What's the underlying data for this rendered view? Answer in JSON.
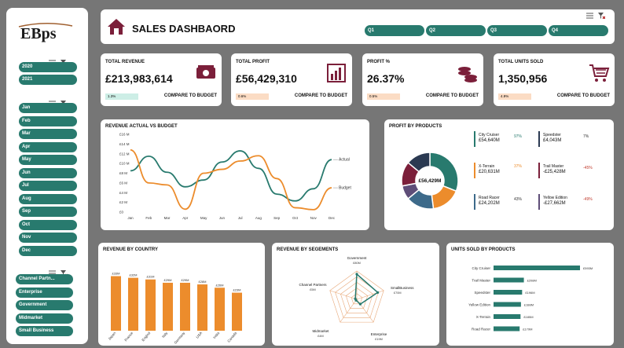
{
  "logo": "EBps",
  "sidebar": {
    "years": [
      "2020",
      "2021"
    ],
    "months": [
      "Jan",
      "Feb",
      "Mar",
      "Apr",
      "May",
      "Jun",
      "Jul",
      "Aug",
      "Sep",
      "Oct",
      "Nov",
      "Dec"
    ],
    "segments": [
      "Channel Partn...",
      "Enterprise",
      "Government",
      "Midmarket",
      "Small Business"
    ]
  },
  "header": {
    "title": "SALES DASHBAORD",
    "quarters": [
      "Q1",
      "Q2",
      "Q3",
      "Q4"
    ]
  },
  "kpis": [
    {
      "title": "TOTAL REVENUE",
      "value": "£213,983,614",
      "badge": "1.3%",
      "compare": "COMPARE TO BUDGET",
      "icon": "money-icon",
      "badge_color": "#cdeee6"
    },
    {
      "title": "TOTAL PROFIT",
      "value": "£56,429,310",
      "badge": "0.6%",
      "compare": "COMPARE TO BUDGET",
      "icon": "bar-chart-icon",
      "badge_color": "#fbdcc4"
    },
    {
      "title": "PROFIT %",
      "value": "26.37%",
      "badge": "0.5%",
      "compare": "COMPARE TO BUDGET",
      "icon": "coins-icon",
      "badge_color": "#fbdcc4"
    },
    {
      "title": "TOTAL UNITS SOLD",
      "value": "1,350,956",
      "badge": "4.9%",
      "compare": "COMPARE TO BUDGET",
      "icon": "cart-icon",
      "badge_color": "#fbdcc4"
    }
  ],
  "colors": {
    "teal": "#287a6e",
    "orange": "#ec8c2c",
    "maroon": "#7b1f3a",
    "navy": "#2b3a52",
    "blue": "#3d6a8a"
  },
  "revenue_chart": {
    "title": "REVENUE ACTUAL VS BUDGET",
    "chart_data": {
      "type": "line",
      "categories": [
        "Jan",
        "Feb",
        "Mar",
        "Apr",
        "May",
        "Jun",
        "Jul",
        "Aug",
        "Sep",
        "Oct",
        "Nov",
        "Dec"
      ],
      "yticks": [
        "£0",
        "£2 M",
        "£4 M",
        "£6 M",
        "£8 M",
        "£10 M",
        "£12 M",
        "£14 M",
        "£16 M"
      ],
      "ylim": [
        0,
        16
      ],
      "series": [
        {
          "name": "Actual",
          "values": [
            8.5,
            11.5,
            8.2,
            5.2,
            6.6,
            10.3,
            12.6,
            9.0,
            3.7,
            2.3,
            4.8,
            10.8
          ]
        },
        {
          "name": "Budget",
          "values": [
            12.8,
            6.0,
            5.6,
            0.6,
            8.0,
            8.8,
            10.5,
            11.6,
            6.9,
            0.9,
            0.5,
            5.0
          ]
        }
      ]
    }
  },
  "profit_chart": {
    "title": "PROFIT BY PRODUCTS",
    "center": "£56,429M",
    "chart_data": {
      "type": "pie",
      "items": [
        {
          "name": "City Cruiser",
          "value": "£54,640M",
          "pct": "97%",
          "color": "#287a6e",
          "share": 0.31
        },
        {
          "name": "X-Terrain",
          "value": "£20,631M",
          "pct": "37%",
          "color": "#ec8c2c",
          "share": 0.17
        },
        {
          "name": "Road Racer",
          "value": "£24,202M",
          "pct": "43%",
          "color": "#3d6a8a",
          "share": 0.16
        },
        {
          "name": "Yellow Edition",
          "value": "-£27,662M",
          "pct": "-49%",
          "color": "#5e4d78",
          "share": 0.08
        },
        {
          "name": "Trail Master",
          "value": "-£25,428M",
          "pct": "-45%",
          "color": "#7b1f3a",
          "share": 0.14
        },
        {
          "name": "Speedster",
          "value": "£4,043M",
          "pct": "7%",
          "color": "#2b3a52",
          "share": 0.14
        }
      ]
    }
  },
  "country_chart": {
    "title": "REVENUE BY COUNTRY",
    "chart_data": {
      "type": "bar",
      "categories": [
        "Japan",
        "France",
        "Englnd",
        "Italy",
        "Germany",
        "USA",
        "India",
        "Canada"
      ],
      "values": [
        33,
        32,
        31,
        29,
        29,
        28,
        26,
        23
      ],
      "labels": [
        "£33M",
        "£32M",
        "£31M",
        "£29M",
        "£29M",
        "£28M",
        "£26M",
        "£23M"
      ],
      "ylim": [
        0,
        38
      ]
    }
  },
  "segments_chart": {
    "title": "REVENUE BY SEGEMENTS",
    "chart_data": {
      "type": "radar",
      "axes": [
        "Government",
        "SmallBusiness",
        "Enterprise",
        "Midmarket",
        "Channel Partners"
      ],
      "labels": [
        "£80M",
        "£70M",
        "£19M",
        "£4M",
        "£5M"
      ],
      "values": [
        80,
        70,
        19,
        4,
        5
      ],
      "max": 90
    }
  },
  "units_chart": {
    "title": "UNITS SOLD BY PRODUCTS",
    "chart_data": {
      "type": "bar",
      "categories": [
        "City Cruiser",
        "Trail Master",
        "Speedster",
        "Yellow Edition",
        "X-Terrain",
        "Road Racer"
      ],
      "values": [
        593,
        208,
        196,
        188,
        185,
        179
      ],
      "labels": [
        "£593M",
        "£208M",
        "£196M",
        "£188M",
        "£185M",
        "£179M"
      ]
    }
  }
}
